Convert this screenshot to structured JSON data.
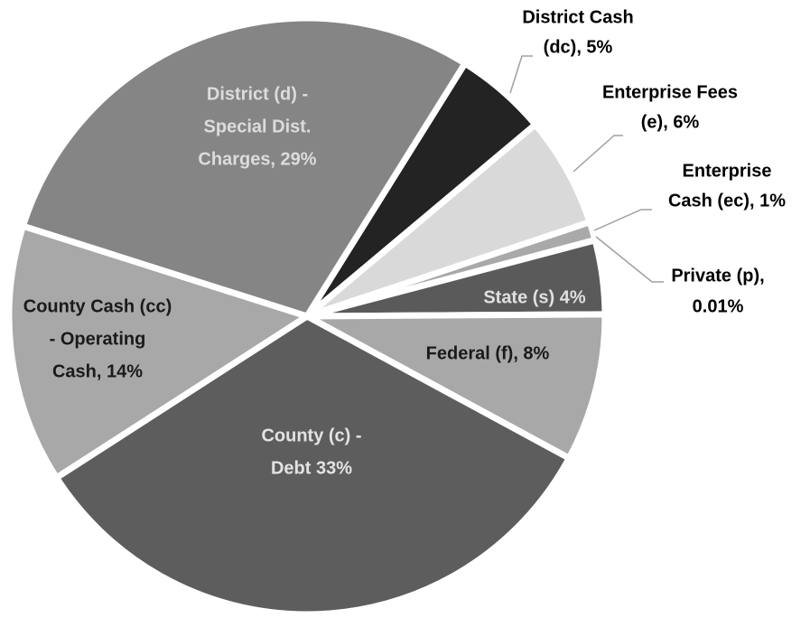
{
  "chart_data": {
    "type": "pie",
    "values": [
      5,
      6,
      1,
      0.01,
      4,
      8,
      33,
      14,
      29
    ],
    "colors": [
      "#232323",
      "#d9d9d9",
      "#a9a9a9",
      "#8c8c8c",
      "#5a5a5a",
      "#a8a8a8",
      "#5d5d5d",
      "#a8a8a8",
      "#858585"
    ],
    "value_labels": [
      [
        "District Cash",
        "(dc), 5%"
      ],
      [
        "Enterprise Fees",
        "(e), 6%"
      ],
      [
        "Enterprise",
        "Cash (ec), 1%"
      ],
      [
        "Private (p),",
        "0.01%"
      ],
      [
        "State (s) 4%"
      ],
      [
        "Federal (f), 8%"
      ],
      [
        "County (c) -",
        "Debt 33%"
      ],
      [
        "County Cash (cc)",
        "- Operating",
        "Cash, 14%"
      ],
      [
        "District (d) -",
        "Special Dist.",
        "Charges, 29%"
      ]
    ]
  }
}
